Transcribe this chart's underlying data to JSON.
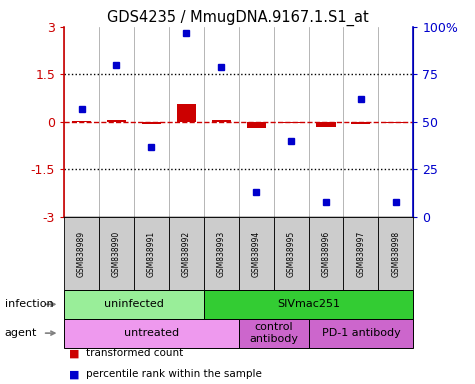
{
  "title": "GDS4235 / MmugDNA.9167.1.S1_at",
  "samples": [
    "GSM838989",
    "GSM838990",
    "GSM838991",
    "GSM838992",
    "GSM838993",
    "GSM838994",
    "GSM838995",
    "GSM838996",
    "GSM838997",
    "GSM838998"
  ],
  "transformed_count": [
    0.02,
    0.05,
    -0.05,
    0.55,
    0.07,
    -0.18,
    -0.02,
    -0.15,
    -0.05,
    -0.03
  ],
  "percentile_rank": [
    57,
    80,
    37,
    97,
    79,
    13,
    40,
    8,
    62,
    8
  ],
  "ylim": [
    -3,
    3
  ],
  "right_ylim": [
    0,
    100
  ],
  "yticks_left": [
    -3,
    -1.5,
    0,
    1.5,
    3
  ],
  "yticks_right": [
    0,
    25,
    50,
    75,
    100
  ],
  "hlines": [
    1.5,
    -1.5
  ],
  "hline_zero_color": "#cc0000",
  "bar_color": "#cc0000",
  "dot_color": "#0000cc",
  "infection_groups": [
    {
      "label": "uninfected",
      "start": 0,
      "end": 3,
      "color": "#99ee99"
    },
    {
      "label": "SIVmac251",
      "start": 4,
      "end": 9,
      "color": "#33cc33"
    }
  ],
  "agent_groups": [
    {
      "label": "untreated",
      "start": 0,
      "end": 4,
      "color": "#ee99ee"
    },
    {
      "label": "control\nantibody",
      "start": 5,
      "end": 6,
      "color": "#cc66cc"
    },
    {
      "label": "PD-1 antibody",
      "start": 7,
      "end": 9,
      "color": "#cc66cc"
    }
  ],
  "row_labels": [
    "infection",
    "agent"
  ],
  "legend_items": [
    {
      "label": "transformed count",
      "color": "#cc0000"
    },
    {
      "label": "percentile rank within the sample",
      "color": "#0000cc"
    }
  ],
  "bg_color": "#ffffff",
  "plot_bg": "#ffffff",
  "sample_box_color": "#cccccc",
  "right_label": [
    "0",
    "25",
    "50",
    "75",
    "100%"
  ]
}
